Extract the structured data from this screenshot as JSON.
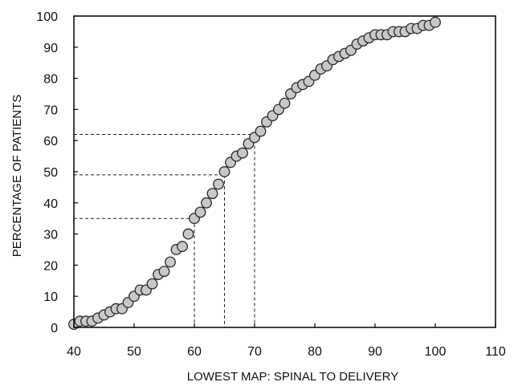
{
  "chart_data": {
    "type": "scatter",
    "xlabel": "LOWEST MAP: SPINAL TO DELIVERY",
    "ylabel": "PERCENTAGE OF PATIENTS",
    "xlim": [
      40,
      110
    ],
    "ylim": [
      0,
      100
    ],
    "xticks": [
      "40",
      "50",
      "60",
      "70",
      "80",
      "90",
      "100",
      "110"
    ],
    "yticks": [
      "0",
      "10",
      "20",
      "30",
      "40",
      "50",
      "60",
      "70",
      "80",
      "90",
      "100"
    ],
    "grid": false,
    "legend": "none",
    "series": [
      {
        "x": [
          40,
          41,
          42,
          43,
          44,
          45,
          46,
          47,
          48,
          49,
          50,
          51,
          52,
          53,
          54,
          55,
          56,
          57,
          58,
          59,
          60,
          61,
          62,
          63,
          64,
          65,
          66,
          67,
          68,
          69,
          70,
          71,
          72,
          73,
          74,
          75,
          76,
          77,
          78,
          79,
          80,
          81,
          82,
          83,
          84,
          85,
          86,
          87,
          88,
          89,
          90,
          91,
          92,
          93,
          94,
          95,
          96,
          97,
          98,
          99,
          100
        ],
        "y": [
          1,
          2,
          2,
          2,
          3,
          4,
          5,
          6,
          6,
          8,
          10,
          12,
          12,
          14,
          17,
          18,
          21,
          25,
          26,
          30,
          35,
          37,
          40,
          43,
          46,
          50,
          53,
          55,
          56,
          59,
          61,
          63,
          66,
          68,
          70,
          72,
          75,
          77,
          78,
          79,
          81,
          83,
          84,
          86,
          87,
          88,
          89,
          91,
          92,
          93,
          94,
          94,
          94,
          95,
          95,
          95,
          96,
          96,
          97,
          97,
          98
        ]
      }
    ],
    "reference_lines": [
      {
        "x": 60,
        "y": 35
      },
      {
        "x": 65,
        "y": 49
      },
      {
        "x": 70,
        "y": 62
      }
    ],
    "marker_fill": "#c8c8c8",
    "marker_stroke": "#2a2a2a"
  }
}
